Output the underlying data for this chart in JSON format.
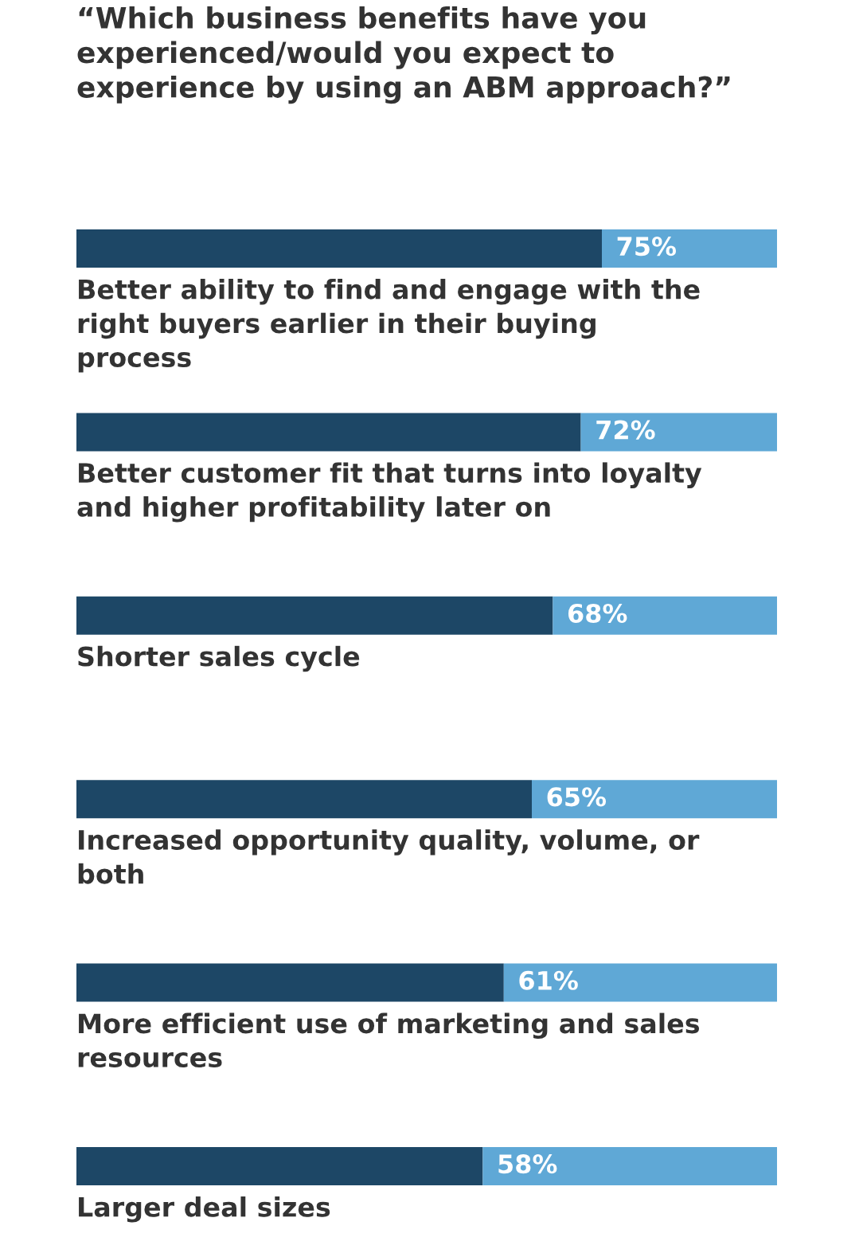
{
  "chart_data": {
    "type": "bar",
    "orientation": "horizontal",
    "stacked": true,
    "title": "“Which business benefits have you\nexperienced/would you expect to\nexperience by using an ABM approach?”",
    "categories": [
      "Better ability to find and engage with the\nright buyers earlier in their buying\nprocess",
      "Better customer fit that turns into loyalty\nand higher profitability later on",
      "Shorter sales cycle",
      "Increased opportunity quality, volume, or\nboth",
      "More efficient use of marketing and sales\nresources",
      "Larger deal sizes"
    ],
    "series": [
      {
        "color": "#1d4766",
        "values": [
          75,
          72,
          68,
          65,
          61,
          58
        ],
        "value_labels": [
          "75%",
          "72%",
          "68%",
          "65%",
          "61%",
          "58%"
        ]
      },
      {
        "color": "#5fa8d6",
        "values": [
          25,
          28,
          32,
          35,
          39,
          42
        ]
      }
    ],
    "xlim": [
      0,
      100
    ],
    "tick_labels": false,
    "grid": false,
    "legend": false
  }
}
